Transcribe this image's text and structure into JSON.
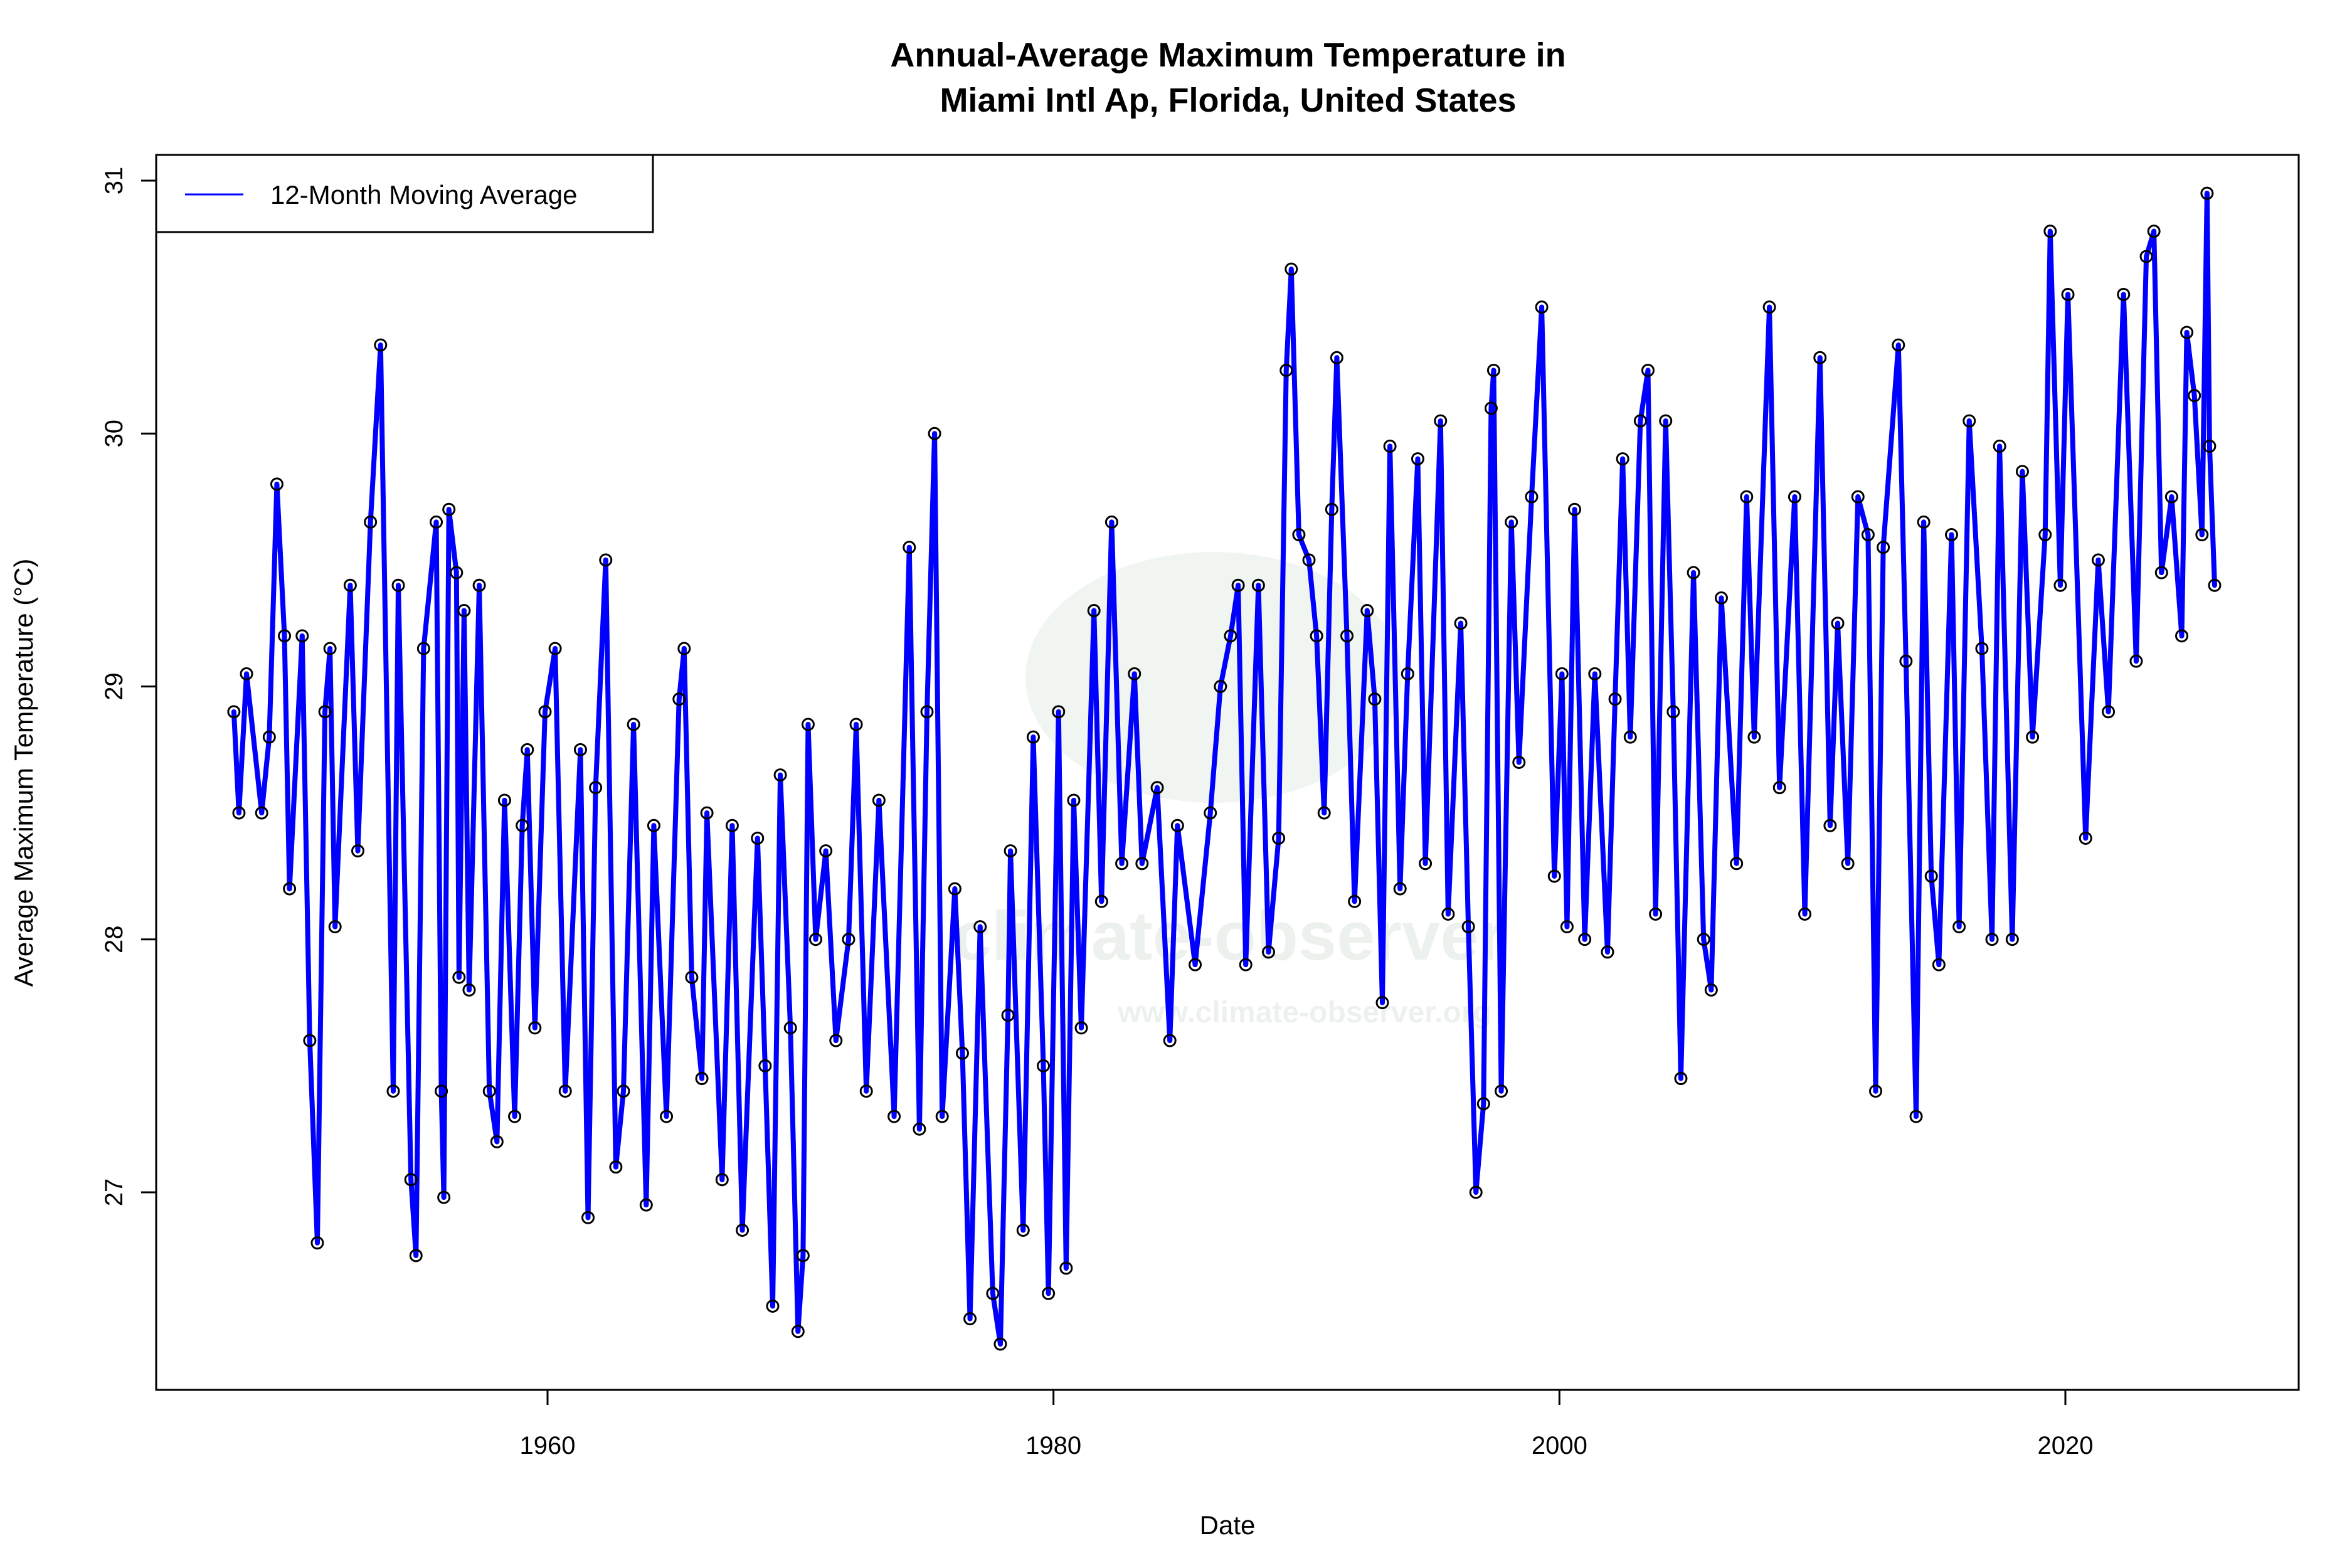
{
  "chart_data": {
    "type": "line",
    "title": "Annual-Average Maximum Temperature in",
    "subtitle": "Miami Intl Ap, Florida, United States",
    "xlabel": "Date",
    "ylabel": "Average Maximum Temperature (°C)",
    "xlim": [
      1946.3,
      2029.0
    ],
    "ylim": [
      26.3,
      31.1
    ],
    "x_ticks": [
      "1960",
      "1980",
      "2000",
      "2020"
    ],
    "y_ticks": [
      "27",
      "28",
      "29",
      "30",
      "31"
    ],
    "grid": false,
    "legend": {
      "placement": "top-left",
      "entries": [
        "12-Month Moving Average"
      ]
    },
    "line_color": "#0000ff",
    "marker": "open-circle",
    "watermark": [
      "climate-observer",
      "www.climate-observer.org"
    ],
    "series": [
      {
        "name": "12-Month Moving Average",
        "x": [
          1947.6,
          1947.8,
          1948.1,
          1948.7,
          1949.0,
          1949.3,
          1949.6,
          1949.8,
          1950.3,
          1950.6,
          1950.9,
          1951.2,
          1951.4,
          1951.6,
          1952.2,
          1952.5,
          1953.0,
          1953.4,
          1953.9,
          1954.1,
          1954.6,
          1954.8,
          1955.1,
          1955.6,
          1955.8,
          1955.9,
          1956.1,
          1956.4,
          1956.5,
          1956.7,
          1956.9,
          1957.3,
          1957.7,
          1958.0,
          1958.3,
          1958.7,
          1959.0,
          1959.2,
          1959.5,
          1959.9,
          1960.3,
          1960.7,
          1961.3,
          1961.6,
          1961.9,
          1962.3,
          1962.7,
          1963.0,
          1963.4,
          1963.9,
          1964.2,
          1964.7,
          1965.2,
          1965.4,
          1965.7,
          1966.1,
          1966.3,
          1966.9,
          1967.3,
          1967.7,
          1968.3,
          1968.6,
          1968.9,
          1969.2,
          1969.6,
          1969.9,
          1970.1,
          1970.3,
          1970.6,
          1971.0,
          1971.4,
          1971.9,
          1972.2,
          1972.6,
          1973.1,
          1973.7,
          1974.3,
          1974.7,
          1975.0,
          1975.3,
          1975.6,
          1976.1,
          1976.4,
          1976.7,
          1977.1,
          1977.6,
          1977.9,
          1978.2,
          1978.3,
          1978.8,
          1979.2,
          1979.6,
          1979.8,
          1980.2,
          1980.5,
          1980.8,
          1981.1,
          1981.6,
          1981.9,
          1982.3,
          1982.7,
          1983.2,
          1983.5,
          1984.1,
          1984.6,
          1984.9,
          1985.6,
          1986.2,
          1986.6,
          1987.0,
          1987.3,
          1987.6,
          1988.1,
          1988.5,
          1988.9,
          1989.2,
          1989.4,
          1989.7,
          1990.1,
          1990.4,
          1990.7,
          1991.0,
          1991.2,
          1991.6,
          1991.9,
          1992.4,
          1992.7,
          1993.0,
          1993.3,
          1993.7,
          1994.0,
          1994.4,
          1994.7,
          1995.3,
          1995.6,
          1996.1,
          1996.4,
          1996.7,
          1997.0,
          1997.3,
          1997.4,
          1997.7,
          1998.1,
          1998.4,
          1998.9,
          1999.3,
          1999.8,
          2000.1,
          2000.3,
          2000.6,
          2001.0,
          2001.4,
          2001.9,
          2002.2,
          2002.5,
          2002.8,
          2003.2,
          2003.5,
          2003.8,
          2004.2,
          2004.5,
          2004.8,
          2005.3,
          2005.7,
          2006.0,
          2006.4,
          2007.0,
          2007.4,
          2007.7,
          2008.3,
          2008.7,
          2009.3,
          2009.7,
          2010.3,
          2010.7,
          2011.0,
          2011.4,
          2011.8,
          2012.2,
          2012.5,
          2012.8,
          2013.4,
          2013.7,
          2014.1,
          2014.4,
          2014.7,
          2015.0,
          2015.5,
          2015.8,
          2016.2,
          2016.7,
          2017.1,
          2017.4,
          2017.9,
          2018.3,
          2018.7,
          2019.2,
          2019.4,
          2019.8,
          2020.1,
          2020.8,
          2021.3,
          2021.7,
          2022.3,
          2022.8,
          2023.2,
          2023.5,
          2023.8,
          2024.2,
          2024.6,
          2024.8,
          2025.1,
          2025.4,
          2025.6,
          2025.7,
          2025.9
        ],
        "y": [
          28.9,
          28.5,
          29.05,
          28.5,
          28.8,
          29.8,
          29.2,
          28.2,
          29.2,
          27.6,
          26.8,
          28.9,
          29.15,
          28.05,
          29.4,
          28.35,
          29.65,
          30.35,
          27.4,
          29.4,
          27.05,
          26.75,
          29.15,
          29.65,
          27.4,
          26.98,
          29.7,
          29.45,
          27.85,
          29.3,
          27.8,
          29.4,
          27.4,
          27.2,
          28.55,
          27.3,
          28.45,
          28.75,
          27.65,
          28.9,
          29.15,
          27.4,
          28.75,
          26.9,
          28.6,
          29.5,
          27.1,
          27.4,
          28.85,
          26.95,
          28.45,
          27.3,
          28.95,
          29.15,
          27.85,
          27.45,
          28.5,
          27.05,
          28.45,
          26.85,
          28.4,
          27.5,
          26.55,
          28.65,
          27.65,
          26.45,
          26.75,
          28.85,
          28.0,
          28.35,
          27.6,
          28.0,
          28.85,
          27.4,
          28.55,
          27.3,
          29.55,
          27.25,
          28.9,
          30.0,
          27.3,
          28.2,
          27.55,
          26.5,
          28.05,
          26.6,
          26.4,
          27.7,
          28.35,
          26.85,
          28.8,
          27.5,
          26.6,
          28.9,
          26.7,
          28.55,
          27.65,
          29.3,
          28.15,
          29.65,
          28.3,
          29.05,
          28.3,
          28.6,
          27.6,
          28.45,
          27.9,
          28.5,
          29.0,
          29.2,
          29.4,
          27.9,
          29.4,
          27.95,
          28.4,
          30.25,
          30.65,
          29.6,
          29.5,
          29.2,
          28.5,
          29.7,
          30.3,
          29.2,
          28.15,
          29.3,
          28.95,
          27.75,
          29.95,
          28.2,
          29.05,
          29.9,
          28.3,
          30.05,
          28.1,
          29.25,
          28.05,
          27.0,
          27.35,
          30.1,
          30.25,
          27.4,
          29.65,
          28.7,
          29.75,
          30.5,
          28.25,
          29.05,
          28.05,
          29.7,
          28.0,
          29.05,
          27.95,
          28.95,
          29.9,
          28.8,
          30.05,
          30.25,
          28.1,
          30.05,
          28.9,
          27.45,
          29.45,
          28.0,
          27.8,
          29.35,
          28.3,
          29.75,
          28.8,
          30.5,
          28.6,
          29.75,
          28.1,
          30.3,
          28.45,
          29.25,
          28.3,
          29.75,
          29.6,
          27.4,
          29.55,
          30.35,
          29.1,
          27.3,
          29.65,
          28.25,
          27.9,
          29.6,
          28.05,
          30.05,
          29.15,
          28.0,
          29.95,
          28.0,
          29.85,
          28.8,
          29.6,
          30.8,
          29.4,
          30.55,
          28.4,
          29.5,
          28.9,
          30.55,
          29.1,
          30.7,
          30.8,
          29.45,
          29.75,
          29.2,
          30.4,
          30.15,
          29.6,
          30.95,
          29.95,
          29.4
        ]
      }
    ]
  }
}
